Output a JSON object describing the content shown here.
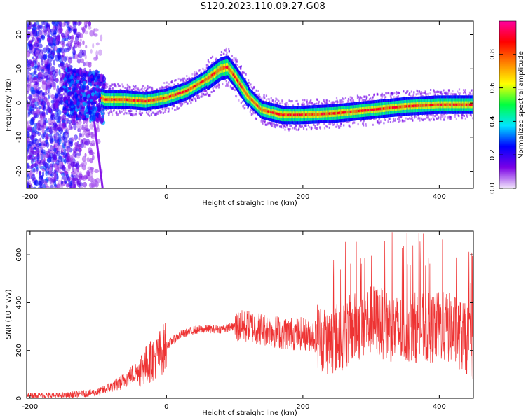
{
  "title": "S120.2023.110.09.27.G08",
  "chart_data": [
    {
      "type": "heatmap",
      "xlabel": "Height of straight line (km)",
      "ylabel": "Frequency (Hz)",
      "xlim": [
        -205,
        450
      ],
      "ylim": [
        -25,
        24
      ],
      "xticks": [
        -200,
        0,
        200,
        400
      ],
      "yticks": [
        -20,
        -10,
        0,
        10,
        20
      ],
      "colorbar": {
        "label": "Normalized spectral amplitude",
        "ticks": [
          "0.0",
          "0.2",
          "0.4",
          "0.6",
          "0.8"
        ],
        "tick_values": [
          0.0,
          0.2,
          0.4,
          0.6,
          0.8
        ],
        "range": [
          0,
          1
        ],
        "colormap": [
          "#f2e6fb",
          "#7a00e6",
          "#0000ff",
          "#00e5ff",
          "#00ff40",
          "#ffff00",
          "#ff8000",
          "#ff0000",
          "#ff00a0"
        ]
      },
      "ridge_frequency": {
        "height_km": [
          -140,
          -120,
          -100,
          -90,
          -60,
          -30,
          0,
          30,
          60,
          80,
          90,
          100,
          120,
          140,
          170,
          200,
          250,
          300,
          350,
          400,
          450
        ],
        "frequency_hz": [
          3,
          2,
          2,
          1,
          1,
          0.5,
          1.5,
          3.5,
          7,
          10,
          10.5,
          8,
          2,
          -2,
          -3.5,
          -3.5,
          -3,
          -2,
          -1,
          -0.5,
          -0.5
        ]
      },
      "grid": false
    },
    {
      "type": "line",
      "xlabel": "Height of straight line (km)",
      "ylabel": "SNR (10 * v/v)",
      "xlim": [
        -205,
        450
      ],
      "ylim": [
        0,
        700
      ],
      "xticks": [
        -200,
        0,
        200,
        400
      ],
      "yticks": [
        0,
        200,
        400,
        600
      ],
      "color": "#ee3333",
      "x": [
        -205,
        -150,
        -100,
        -70,
        -40,
        -25,
        -10,
        0,
        20,
        40,
        60,
        80,
        100,
        120,
        140,
        160,
        180,
        200,
        220,
        240,
        260,
        280,
        300,
        320,
        340,
        360,
        380,
        400,
        420,
        450
      ],
      "y": [
        12,
        12,
        25,
        60,
        120,
        150,
        190,
        220,
        265,
        285,
        290,
        290,
        300,
        300,
        290,
        280,
        270,
        270,
        260,
        240,
        270,
        300,
        330,
        310,
        280,
        300,
        290,
        300,
        290,
        220
      ],
      "grid": false
    }
  ]
}
